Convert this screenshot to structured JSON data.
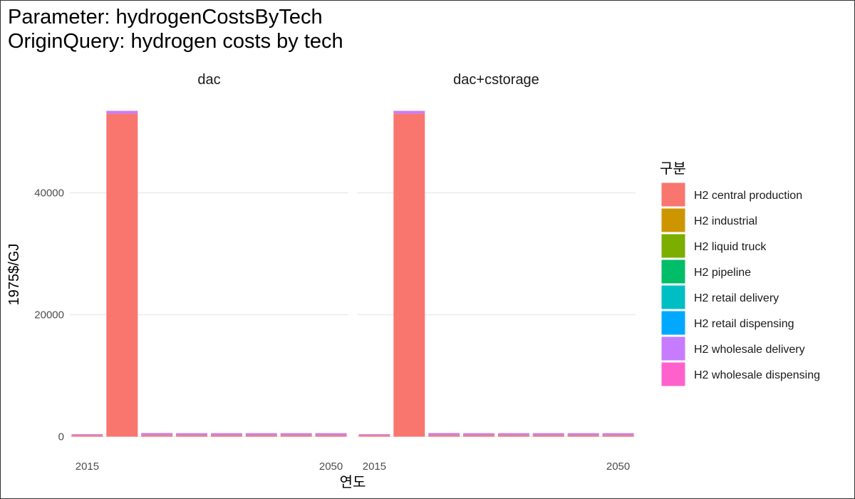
{
  "title": {
    "line1": "Parameter: hydrogenCostsByTech",
    "line2": "OriginQuery: hydrogen costs by tech"
  },
  "chart_data": {
    "type": "bar",
    "stacked": true,
    "xlabel": "연도",
    "ylabel": "1975$/GJ",
    "x_ticks": [
      2015,
      2050
    ],
    "y_ticks": [
      0,
      20000,
      40000
    ],
    "ylim": [
      0,
      56000
    ],
    "grid": true,
    "legend": {
      "title": "구분",
      "placement": "right",
      "entries": [
        {
          "name": "H2 central production",
          "color": "#F8766D"
        },
        {
          "name": "H2 industrial",
          "color": "#CD9600"
        },
        {
          "name": "H2 liquid truck",
          "color": "#7CAE00"
        },
        {
          "name": "H2 pipeline",
          "color": "#00BE67"
        },
        {
          "name": "H2 retail delivery",
          "color": "#00BFC4"
        },
        {
          "name": "H2 retail dispensing",
          "color": "#00A9FF"
        },
        {
          "name": "H2 wholesale delivery",
          "color": "#C77CFF"
        },
        {
          "name": "H2 wholesale dispensing",
          "color": "#FF61CC"
        }
      ]
    },
    "panels": [
      {
        "name": "dac",
        "x": [
          2015,
          2020,
          2025,
          2030,
          2035,
          2040,
          2045,
          2050
        ],
        "series": [
          {
            "name": "H2 central production",
            "values": [
              250,
              53000,
              230,
              220,
              220,
              220,
              220,
              220
            ]
          },
          {
            "name": "H2 industrial",
            "values": [
              0,
              0,
              30,
              30,
              30,
              30,
              30,
              30
            ]
          },
          {
            "name": "H2 liquid truck",
            "values": [
              0,
              0,
              0,
              0,
              0,
              0,
              0,
              0
            ]
          },
          {
            "name": "H2 pipeline",
            "values": [
              0,
              0,
              0,
              0,
              0,
              0,
              0,
              0
            ]
          },
          {
            "name": "H2 retail delivery",
            "values": [
              0,
              0,
              0,
              0,
              0,
              0,
              0,
              0
            ]
          },
          {
            "name": "H2 retail dispensing",
            "values": [
              0,
              0,
              0,
              0,
              0,
              0,
              0,
              0
            ]
          },
          {
            "name": "H2 wholesale delivery",
            "values": [
              150,
              450,
              330,
              320,
              320,
              320,
              320,
              320
            ]
          },
          {
            "name": "H2 wholesale dispensing",
            "values": [
              0,
              0,
              0,
              0,
              0,
              0,
              0,
              0
            ]
          }
        ]
      },
      {
        "name": "dac+cstorage",
        "x": [
          2015,
          2020,
          2025,
          2030,
          2035,
          2040,
          2045,
          2050
        ],
        "series": [
          {
            "name": "H2 central production",
            "values": [
              250,
              53000,
              230,
              220,
              220,
              220,
              220,
              220
            ]
          },
          {
            "name": "H2 industrial",
            "values": [
              0,
              0,
              30,
              30,
              30,
              30,
              30,
              30
            ]
          },
          {
            "name": "H2 liquid truck",
            "values": [
              0,
              0,
              0,
              0,
              0,
              0,
              0,
              0
            ]
          },
          {
            "name": "H2 pipeline",
            "values": [
              0,
              0,
              0,
              0,
              0,
              0,
              0,
              0
            ]
          },
          {
            "name": "H2 retail delivery",
            "values": [
              0,
              0,
              0,
              0,
              0,
              0,
              0,
              0
            ]
          },
          {
            "name": "H2 retail dispensing",
            "values": [
              0,
              0,
              0,
              0,
              0,
              0,
              0,
              0
            ]
          },
          {
            "name": "H2 wholesale delivery",
            "values": [
              150,
              450,
              330,
              320,
              320,
              320,
              320,
              320
            ]
          },
          {
            "name": "H2 wholesale dispensing",
            "values": [
              0,
              0,
              0,
              0,
              0,
              0,
              0,
              0
            ]
          }
        ]
      }
    ]
  }
}
